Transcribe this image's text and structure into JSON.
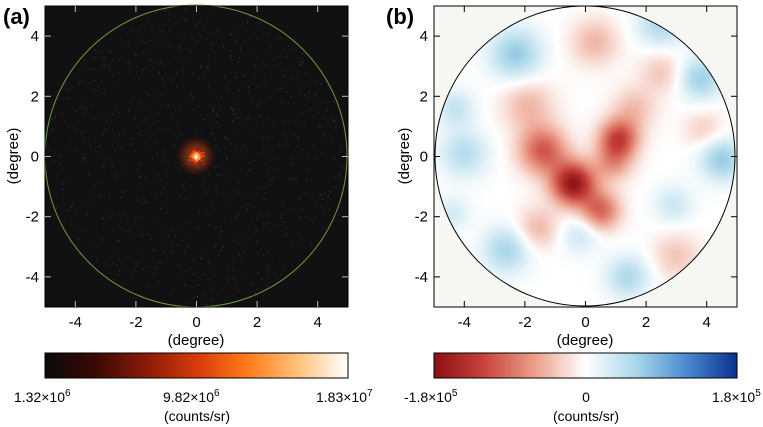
{
  "chart_data": [
    {
      "type": "heatmap",
      "panel_label": "(a)",
      "xlabel": "(degree)",
      "ylabel": "(degree)",
      "xlim": [
        -5,
        5
      ],
      "ylim": [
        -5,
        5
      ],
      "xticks": [
        -4,
        -2,
        0,
        2,
        4
      ],
      "yticks": [
        -4,
        -2,
        0,
        2,
        4
      ],
      "xtick_labels": [
        "-4",
        "-2",
        "0",
        "2",
        "4"
      ],
      "ytick_labels": [
        "-4",
        "-2",
        "0",
        "2",
        "4"
      ],
      "region": {
        "shape": "circle",
        "center": [
          0,
          0
        ],
        "radius_deg": 5
      },
      "region_color": "#6b9b3a",
      "background_color": "#111111",
      "description_value": "bright compact source near origin",
      "hotspot_center_deg": [
        0,
        0
      ],
      "colorbar": {
        "label": "(counts/sr)",
        "min_label": {
          "base": "1.32×10",
          "exp": "6"
        },
        "mid_label": {
          "base": "9.82×10",
          "exp": "6"
        },
        "max_label": {
          "base": "1.83×10",
          "exp": "7"
        },
        "min": 1320000,
        "mid": 9820000,
        "max": 18300000,
        "colormap": "hot",
        "stops": [
          "#0a0a0a",
          "#3a0a05",
          "#8a1a08",
          "#d63a0a",
          "#ff7a1a",
          "#ffc27a",
          "#ffffff"
        ]
      }
    },
    {
      "type": "heatmap",
      "panel_label": "(b)",
      "xlabel": "(degree)",
      "ylabel": "(degree)",
      "xlim": [
        -5,
        5
      ],
      "ylim": [
        -5,
        5
      ],
      "xticks": [
        -4,
        -2,
        0,
        2,
        4
      ],
      "yticks": [
        -4,
        -2,
        0,
        2,
        4
      ],
      "xtick_labels": [
        "-4",
        "-2",
        "0",
        "2",
        "4"
      ],
      "ytick_labels": [
        "-4",
        "-2",
        "0",
        "2",
        "4"
      ],
      "region": {
        "shape": "circle",
        "center": [
          0,
          0
        ],
        "radius_deg": 5
      },
      "region_color": "#000000",
      "outside_color": "#f6f6f3",
      "blobs": [
        {
          "x": -2.3,
          "y": 3.4,
          "sigma": 0.6,
          "value": 70000
        },
        {
          "x": 2.5,
          "y": 4.4,
          "sigma": 0.55,
          "value": 55000
        },
        {
          "x": 3.8,
          "y": 2.6,
          "sigma": 0.5,
          "value": 65000
        },
        {
          "x": -4.3,
          "y": 1.6,
          "sigma": 0.45,
          "value": 40000
        },
        {
          "x": -4.0,
          "y": 0.1,
          "sigma": 0.55,
          "value": 50000
        },
        {
          "x": 4.5,
          "y": -0.1,
          "sigma": 0.5,
          "value": 70000
        },
        {
          "x": -2.6,
          "y": -3.1,
          "sigma": 0.55,
          "value": 60000
        },
        {
          "x": -0.2,
          "y": -2.6,
          "sigma": 0.45,
          "value": 35000
        },
        {
          "x": 2.9,
          "y": -1.6,
          "sigma": 0.45,
          "value": 35000
        },
        {
          "x": 1.4,
          "y": -4.0,
          "sigma": 0.5,
          "value": 55000
        },
        {
          "x": -4.4,
          "y": -1.9,
          "sigma": 0.4,
          "value": 30000
        },
        {
          "x": 0.3,
          "y": 3.8,
          "sigma": 0.55,
          "value": -45000
        },
        {
          "x": 2.5,
          "y": 2.8,
          "sigma": 0.5,
          "value": -35000
        },
        {
          "x": -1.9,
          "y": 1.7,
          "sigma": 0.6,
          "value": -45000
        },
        {
          "x": -1.4,
          "y": 0.2,
          "sigma": 0.55,
          "value": -105000
        },
        {
          "x": -0.4,
          "y": -0.9,
          "sigma": 0.5,
          "value": -170000
        },
        {
          "x": 0.5,
          "y": -1.8,
          "sigma": 0.45,
          "value": -95000
        },
        {
          "x": 1.1,
          "y": 0.6,
          "sigma": 0.45,
          "value": -120000
        },
        {
          "x": 0.9,
          "y": -0.2,
          "sigma": 0.45,
          "value": -60000
        },
        {
          "x": 1.6,
          "y": 1.6,
          "sigma": 0.5,
          "value": -40000
        },
        {
          "x": 3.0,
          "y": -3.3,
          "sigma": 0.55,
          "value": -35000
        },
        {
          "x": -1.6,
          "y": -2.4,
          "sigma": 0.5,
          "value": -45000
        },
        {
          "x": 3.9,
          "y": 0.9,
          "sigma": 0.45,
          "value": -30000
        }
      ],
      "colorbar": {
        "label": "(counts/sr)",
        "min_label": {
          "base": "-1.8×10",
          "exp": "5"
        },
        "mid_label": {
          "base": "0",
          "exp": ""
        },
        "max_label": {
          "base": "1.8×10",
          "exp": "5"
        },
        "min": -180000,
        "mid": 0,
        "max": 180000,
        "colormap": "diverging red-white-blue",
        "stops": [
          "#8b0f12",
          "#c8443c",
          "#ec9f8a",
          "#ffffff",
          "#a9d7ea",
          "#4a8ad0",
          "#0b2f8f"
        ]
      }
    }
  ]
}
